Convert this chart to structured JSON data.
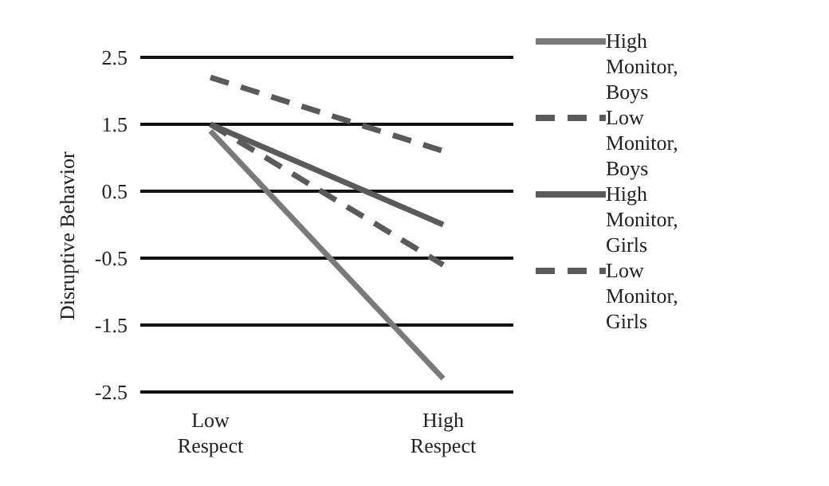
{
  "chart_data": {
    "type": "line",
    "ylabel": "Disruptive Behavior",
    "categories": [
      "Low Respect",
      "High Respect"
    ],
    "series": [
      {
        "name": "High Monitor, Boys",
        "color": "#7a7a7a",
        "line_style": "solid",
        "values": [
          1.4,
          -2.3
        ]
      },
      {
        "name": "Low Monitor, Boys",
        "color": "#5a5a5a",
        "line_style": "dashed",
        "values": [
          2.2,
          1.1
        ]
      },
      {
        "name": "High Monitor, Girls",
        "color": "#5a5a5a",
        "line_style": "solid",
        "values": [
          1.5,
          0.0
        ]
      },
      {
        "name": "Low Monitor, Girls",
        "color": "#5a5a5a",
        "line_style": "dashed",
        "values": [
          1.5,
          -0.6
        ]
      }
    ],
    "ylim": [
      -2.5,
      2.5
    ],
    "yticks": [
      -2.5,
      -1.5,
      -0.5,
      0.5,
      1.5,
      2.5
    ],
    "grid": "y",
    "legend": "right",
    "marker": "none"
  }
}
